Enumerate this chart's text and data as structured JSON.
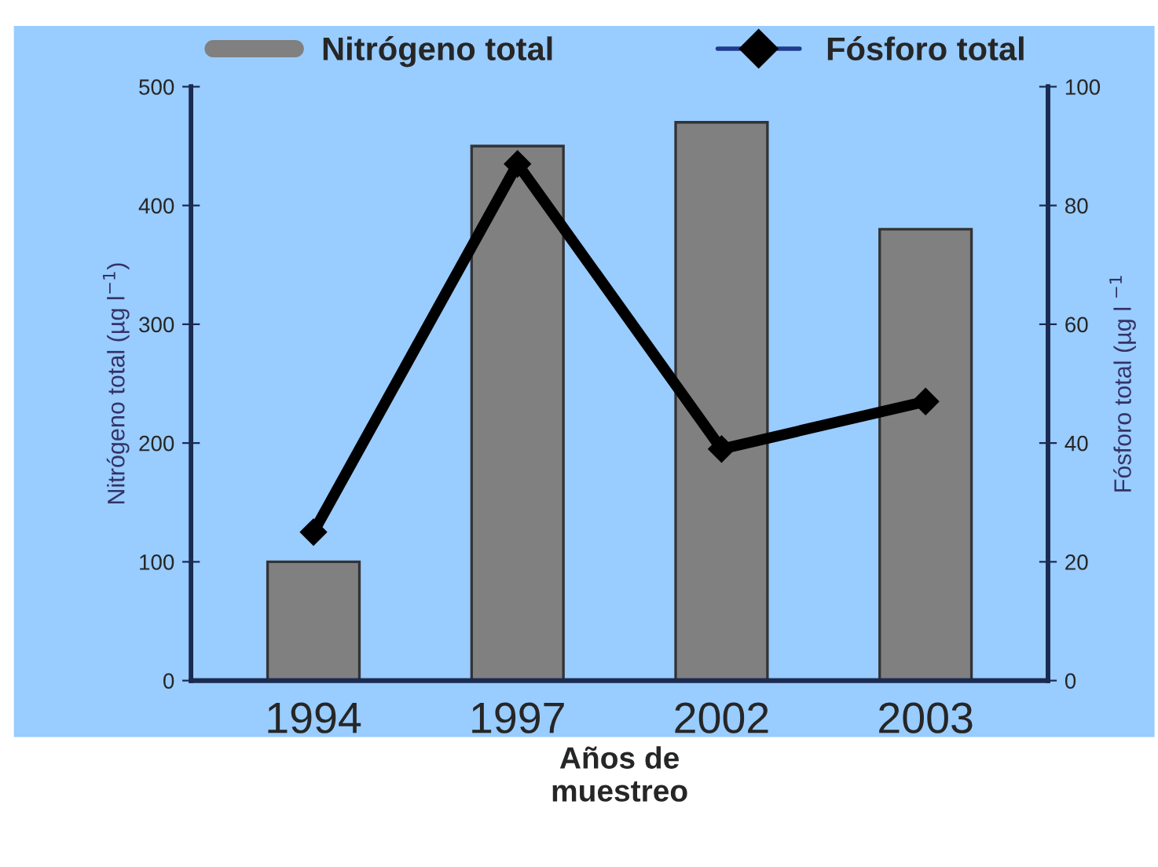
{
  "chart_data": {
    "type": "bar",
    "categories": [
      "1994",
      "1997",
      "2002",
      "2003"
    ],
    "series": [
      {
        "name": "Nitrógeno total",
        "color": "#808080",
        "values": [
          100,
          450,
          470,
          380
        ]
      },
      {
        "name": "Fósforo total",
        "type": "line",
        "axis": "y2",
        "color": "#000000",
        "marker": "diamond",
        "values": [
          25,
          87,
          39,
          47
        ]
      }
    ],
    "xlabel": "Años de\nmuestreo",
    "ylabel": "Nitrógeno total (µg l$^{−1}$)",
    "y2label": "Fósforo total (µg l $^{−1}$",
    "ylim": [
      0,
      500
    ],
    "yticks": [
      0,
      100,
      200,
      300,
      400,
      500
    ],
    "y2lim": [
      0,
      100
    ],
    "y2ticks": [
      0,
      20,
      40,
      60,
      80,
      100
    ],
    "grid": false,
    "legend": "top"
  }
}
